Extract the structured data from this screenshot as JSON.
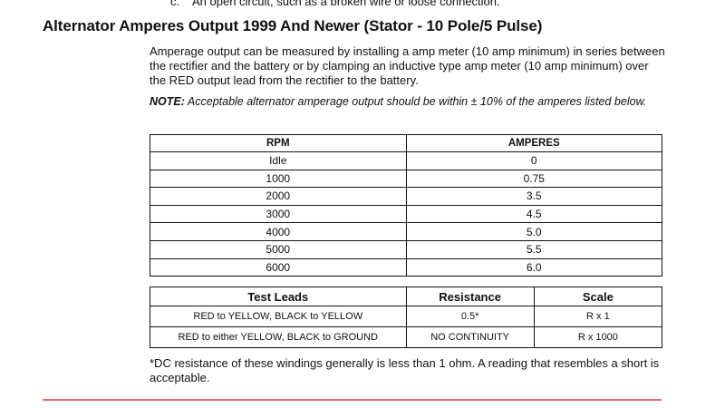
{
  "prev_item": {
    "marker": "c.",
    "text": "An open circuit, such as a broken wire or loose connection."
  },
  "heading": "Alternator Amperes Output 1999 And Newer (Stator - 10 Pole/5 Pulse)",
  "paragraph": "Amperage output can be measured by installing a amp meter (10 amp minimum) in series between the rectifier and the battery or by clamping an inductive type amp meter (10 amp minimum) over the RED output lead from the rectifier to the battery.",
  "note": {
    "label": "NOTE:",
    "text": " Acceptable alternator amperage output should be within ± 10% of the amperes listed below."
  },
  "amps_table": {
    "headers": [
      "RPM",
      "AMPERES"
    ],
    "rows": [
      [
        "Idle",
        "0"
      ],
      [
        "1000",
        "0.75"
      ],
      [
        "2000",
        "3.5"
      ],
      [
        "3000",
        "4.5"
      ],
      [
        "4000",
        "5.0"
      ],
      [
        "5000",
        "5.5"
      ],
      [
        "6000",
        "6.0"
      ]
    ]
  },
  "resist_table": {
    "headers": [
      "Test Leads",
      "Resistance",
      "Scale"
    ],
    "rows": [
      [
        "RED to YELLOW, BLACK to YELLOW",
        "0.5*",
        "R x 1"
      ],
      [
        "RED to either YELLOW, BLACK to GROUND",
        "NO CONTINUITY",
        "R x 1000"
      ]
    ]
  },
  "footnote": "*DC resistance of these windings generally is less than 1 ohm. A reading that resembles a short is acceptable.",
  "colors": {
    "rule": "#e86a6a"
  }
}
